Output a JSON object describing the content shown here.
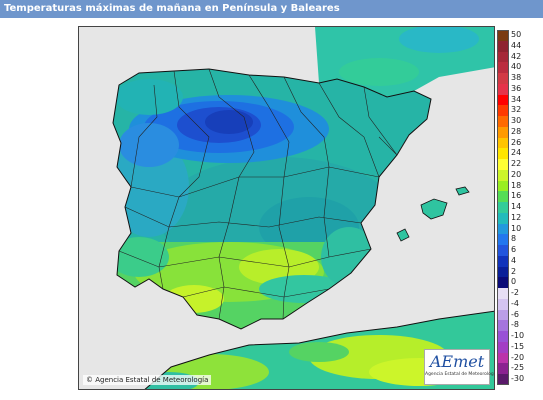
{
  "header": {
    "title": "Temperaturas máximas de mañana en Península y Baleares"
  },
  "map": {
    "credit": "© Agencia Estatal de Meteorología",
    "logo_text": "AEmet",
    "logo_subtext": "Agencia Estatal de Meteorología"
  },
  "legend": {
    "items": [
      {
        "label": "50",
        "color": "#7a3b12"
      },
      {
        "label": "44",
        "color": "#8e2330"
      },
      {
        "label": "42",
        "color": "#a52838"
      },
      {
        "label": "40",
        "color": "#bb2d3f"
      },
      {
        "label": "38",
        "color": "#d23a45"
      },
      {
        "label": "36",
        "color": "#e5334a"
      },
      {
        "label": "34",
        "color": "#ff0000"
      },
      {
        "label": "32",
        "color": "#ff3a00"
      },
      {
        "label": "30",
        "color": "#ff6a00"
      },
      {
        "label": "28",
        "color": "#ff9a00"
      },
      {
        "label": "26",
        "color": "#ffc400"
      },
      {
        "label": "24",
        "color": "#ffe600"
      },
      {
        "label": "22",
        "color": "#ffff33"
      },
      {
        "label": "20",
        "color": "#ccf52a"
      },
      {
        "label": "18",
        "color": "#99ee22"
      },
      {
        "label": "16",
        "color": "#55dd55"
      },
      {
        "label": "14",
        "color": "#33cc99"
      },
      {
        "label": "12",
        "color": "#22bbbb"
      },
      {
        "label": "10",
        "color": "#2299dd"
      },
      {
        "label": "8",
        "color": "#2277ee"
      },
      {
        "label": "6",
        "color": "#2255dd"
      },
      {
        "label": "4",
        "color": "#1133bb"
      },
      {
        "label": "2",
        "color": "#0a1f99"
      },
      {
        "label": "0",
        "color": "#0a0a77"
      },
      {
        "label": "-2",
        "color": "#e7dff5"
      },
      {
        "label": "-4",
        "color": "#d4c4f0"
      },
      {
        "label": "-6",
        "color": "#bb9ee8"
      },
      {
        "label": "-8",
        "color": "#a574dd"
      },
      {
        "label": "-10",
        "color": "#9952d6"
      },
      {
        "label": "-15",
        "color": "#a33ec5"
      },
      {
        "label": "-20",
        "color": "#bb33aa"
      },
      {
        "label": "-25",
        "color": "#8a2290"
      },
      {
        "label": "-30",
        "color": "#5a1a6a"
      }
    ]
  }
}
